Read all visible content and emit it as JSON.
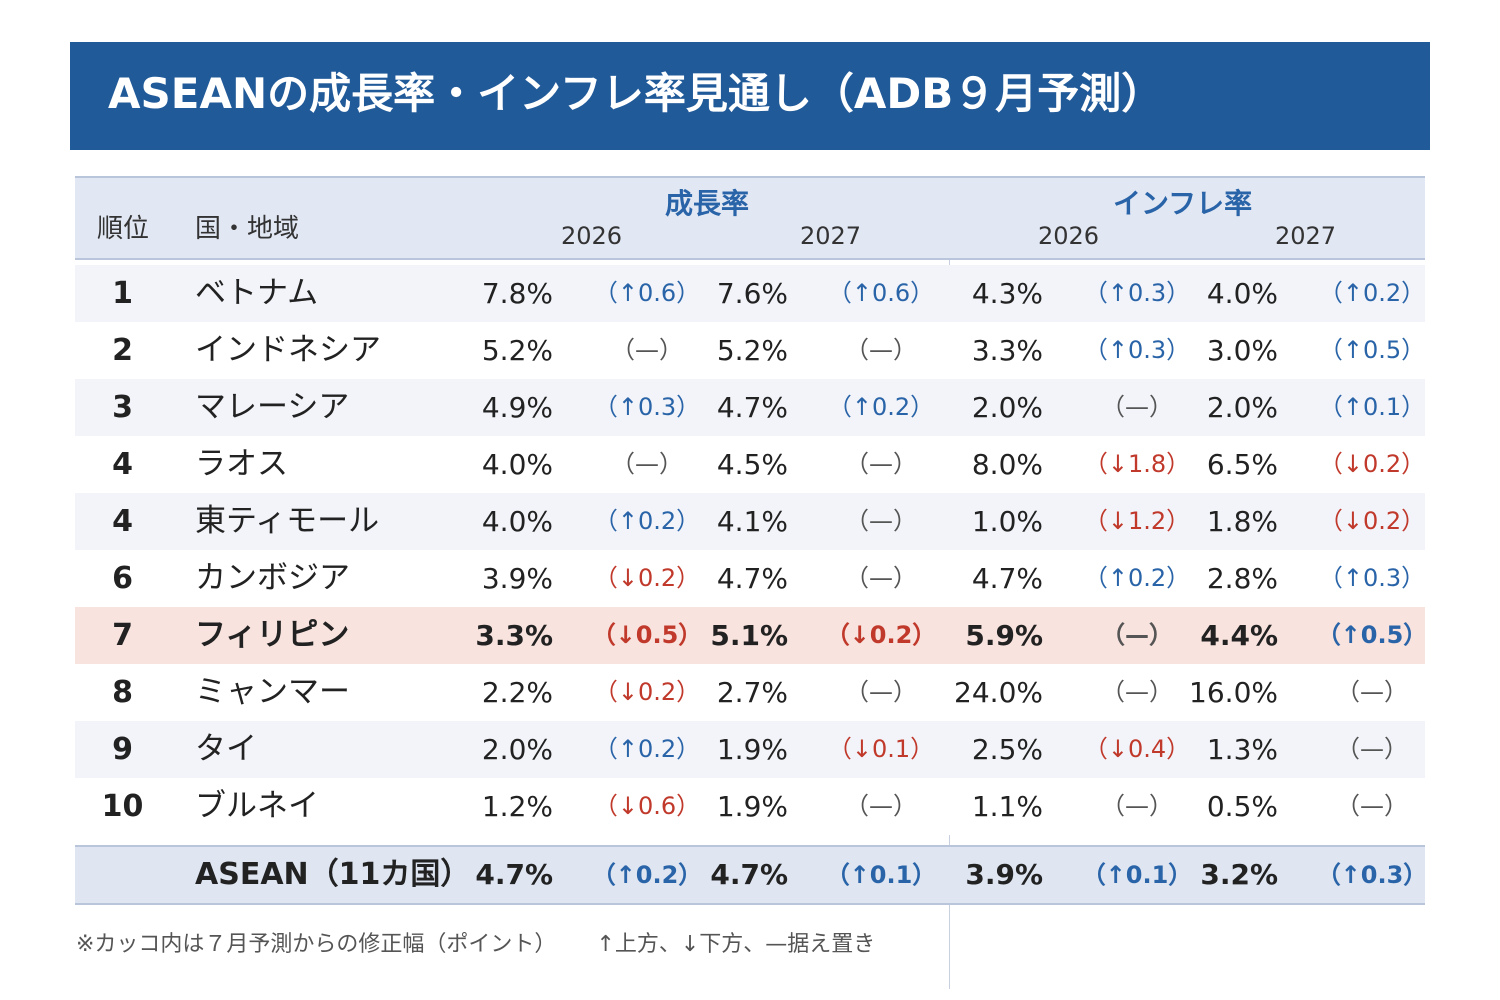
{
  "title": "ASEANの成長率・インフレ率見通し（ADB９月予測）",
  "header": {
    "rank": "順位",
    "country": "国・地域",
    "growth_group": "成長率",
    "inflation_group": "インフレ率",
    "years": [
      "2026",
      "2027",
      "2026",
      "2027"
    ]
  },
  "rows": [
    {
      "rank": "1",
      "country": "ベトナム",
      "g2026": "7.8%",
      "g2026d": "（↑0.6）",
      "g2027": "7.6%",
      "g2027d": "（↑0.6）",
      "i2026": "4.3%",
      "i2026d": "（↑0.3）",
      "i2027": "4.0%",
      "i2027d": "（↑0.2）"
    },
    {
      "rank": "2",
      "country": "インドネシア",
      "g2026": "5.2%",
      "g2026d": "（—）",
      "g2027": "5.2%",
      "g2027d": "（—）",
      "i2026": "3.3%",
      "i2026d": "（↑0.3）",
      "i2027": "3.0%",
      "i2027d": "（↑0.5）"
    },
    {
      "rank": "3",
      "country": "マレーシア",
      "g2026": "4.9%",
      "g2026d": "（↑0.3）",
      "g2027": "4.7%",
      "g2027d": "（↑0.2）",
      "i2026": "2.0%",
      "i2026d": "（—）",
      "i2027": "2.0%",
      "i2027d": "（↑0.1）"
    },
    {
      "rank": "4",
      "country": "ラオス",
      "g2026": "4.0%",
      "g2026d": "（—）",
      "g2027": "4.5%",
      "g2027d": "（—）",
      "i2026": "8.0%",
      "i2026d": "（↓1.8）",
      "i2027": "6.5%",
      "i2027d": "（↓0.2）"
    },
    {
      "rank": "4",
      "country": "東ティモール",
      "g2026": "4.0%",
      "g2026d": "（↑0.2）",
      "g2027": "4.1%",
      "g2027d": "（—）",
      "i2026": "1.0%",
      "i2026d": "（↓1.2）",
      "i2027": "1.8%",
      "i2027d": "（↓0.2）"
    },
    {
      "rank": "6",
      "country": "カンボジア",
      "g2026": "3.9%",
      "g2026d": "（↓0.2）",
      "g2027": "4.7%",
      "g2027d": "（—）",
      "i2026": "4.7%",
      "i2026d": "（↑0.2）",
      "i2027": "2.8%",
      "i2027d": "（↑0.3）"
    },
    {
      "rank": "7",
      "country": "フィリピン",
      "g2026": "3.3%",
      "g2026d": "（↓0.5）",
      "g2027": "5.1%",
      "g2027d": "（↓0.2）",
      "i2026": "5.9%",
      "i2026d": "（—）",
      "i2027": "4.4%",
      "i2027d": "（↑0.5）"
    },
    {
      "rank": "8",
      "country": "ミャンマー",
      "g2026": "2.2%",
      "g2026d": "（↓0.2）",
      "g2027": "2.7%",
      "g2027d": "（—）",
      "i2026": "24.0%",
      "i2026d": "（—）",
      "i2027": "16.0%",
      "i2027d": "（—）"
    },
    {
      "rank": "9",
      "country": "タイ",
      "g2026": "2.0%",
      "g2026d": "（↑0.2）",
      "g2027": "1.9%",
      "g2027d": "（↓0.1）",
      "i2026": "2.5%",
      "i2026d": "（↓0.4）",
      "i2027": "1.3%",
      "i2027d": "（—）"
    },
    {
      "rank": "10",
      "country": "ブルネイ",
      "g2026": "1.2%",
      "g2026d": "（↓0.6）",
      "g2027": "1.9%",
      "g2027d": "（—）",
      "i2026": "1.1%",
      "i2026d": "（—）",
      "i2027": "0.5%",
      "i2027d": "（—）"
    }
  ],
  "total": {
    "country": "ASEAN（11カ国）",
    "g2026": "4.7%",
    "g2026d": "（↑0.2）",
    "g2027": "4.7%",
    "g2027d": "（↑0.1）",
    "i2026": "3.9%",
    "i2026d": "（↑0.1）",
    "i2027": "3.2%",
    "i2027d": "（↑0.3）"
  },
  "note": "※カッコ内は７月予測からの修正幅（ポイント）",
  "legend": "↑上方、↓下方、—据え置き",
  "colors": {
    "title_bg": "#215a99",
    "up": "#2a64a8",
    "down": "#c0392b",
    "highlight": "#f8e3de",
    "header_bg": "#e1e7f3"
  },
  "highlight_row": "7"
}
